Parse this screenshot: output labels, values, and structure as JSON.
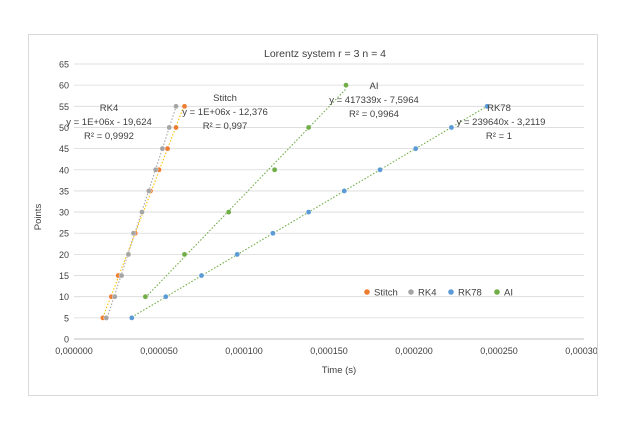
{
  "chart_data": {
    "type": "scatter",
    "title": "Lorentz system r = 3 n = 4",
    "xlabel": "Time (s)",
    "ylabel": "Points",
    "xlim": [
      0,
      0.0003
    ],
    "ylim": [
      0,
      65
    ],
    "x_ticks": [
      "0,000000",
      "0,000050",
      "0,000100",
      "0,000150",
      "0,000200",
      "0,000250",
      "0,000300"
    ],
    "y_ticks": [
      "0",
      "5",
      "10",
      "15",
      "20",
      "25",
      "30",
      "35",
      "40",
      "45",
      "50",
      "55",
      "60",
      "65"
    ],
    "grid": "horizontal",
    "legend_position": "right-inside",
    "series": [
      {
        "name": "Stitch",
        "color": "#ED7D31",
        "trend_color": "#FFC000",
        "x": [
          1.7e-05,
          2.2e-05,
          2.6e-05,
          3.2e-05,
          3.6e-05,
          4e-05,
          4.5e-05,
          5e-05,
          5.5e-05,
          6e-05,
          6.5e-05
        ],
        "y": [
          5,
          10,
          15,
          20,
          25,
          30,
          35,
          40,
          45,
          50,
          55
        ],
        "trendline": {
          "equation": "y = 1E+06x - 12,376",
          "r2": "R² = 0,997"
        }
      },
      {
        "name": "RK4",
        "color": "#A5A5A5",
        "trend_color": "#A5A5A5",
        "x": [
          1.9e-05,
          2.4e-05,
          2.8e-05,
          3.2e-05,
          3.5e-05,
          4e-05,
          4.4e-05,
          4.8e-05,
          5.2e-05,
          5.6e-05,
          6e-05
        ],
        "y": [
          5,
          10,
          15,
          20,
          25,
          30,
          35,
          40,
          45,
          50,
          55
        ],
        "trendline": {
          "equation": "y = 1E+06x - 19,624",
          "r2": "R² = 0,9992"
        }
      },
      {
        "name": "RK78",
        "color": "#5B9BD5",
        "trend_color": "#70AD47",
        "x": [
          3.4e-05,
          5.4e-05,
          7.5e-05,
          9.6e-05,
          0.000117,
          0.000138,
          0.000159,
          0.00018,
          0.000201,
          0.000222,
          0.000243
        ],
        "y": [
          5,
          10,
          15,
          20,
          25,
          30,
          35,
          40,
          45,
          50,
          55
        ],
        "trendline": {
          "equation": "y = 239640x - 3,2119",
          "r2": "R² = 1"
        }
      },
      {
        "name": "AI",
        "color": "#70AD47",
        "trend_color": "#70AD47",
        "x": [
          4.2e-05,
          6.5e-05,
          9.1e-05,
          0.000118,
          0.000138,
          0.00016
        ],
        "y": [
          10,
          20,
          30,
          40,
          50,
          60
        ],
        "trendline": {
          "equation": "y = 417339x - 7,5964",
          "r2": "R² = 0,9964"
        }
      }
    ],
    "annotations": [
      {
        "label": "RK4",
        "series": "RK4"
      },
      {
        "label": "Stitch",
        "series": "Stitch"
      },
      {
        "label": "AI",
        "series": "AI"
      },
      {
        "label": "RK78",
        "series": "RK78"
      }
    ]
  }
}
